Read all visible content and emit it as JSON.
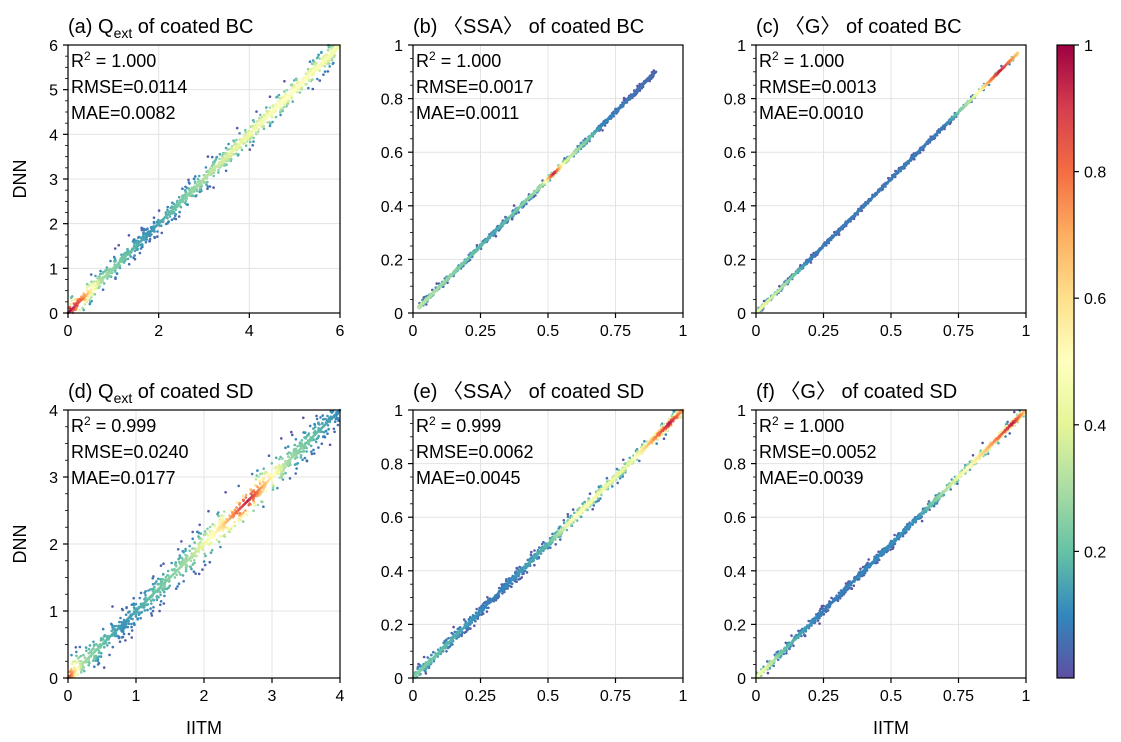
{
  "chart_data": [
    {
      "type": "scatter",
      "panel_label": "(a)",
      "quantity": "Q",
      "quantity_sub": "ext",
      "title_rest": " of coated BC",
      "stats": {
        "r2": "= 1.000",
        "rmse": "RMSE=0.0114",
        "mae": "MAE=0.0082"
      },
      "xlabel": "",
      "ylabel": "DNN",
      "xlim": [
        0,
        6
      ],
      "ylim": [
        0,
        6
      ],
      "xticks": [
        0,
        2,
        4,
        6
      ],
      "xtick_labels": [
        "0",
        "2",
        "4",
        "6"
      ],
      "yticks": [
        0,
        1,
        2,
        3,
        4,
        5,
        6
      ],
      "ytick_labels": [
        "0",
        "1",
        "2",
        "3",
        "4",
        "5",
        "6"
      ],
      "x_range": [
        0,
        6
      ],
      "spread": 0.03,
      "density_profile": [
        [
          0,
          1.0
        ],
        [
          0.05,
          0.8
        ],
        [
          0.12,
          0.3
        ],
        [
          0.3,
          0.12
        ],
        [
          0.6,
          0.4
        ],
        [
          0.8,
          0.5
        ],
        [
          1,
          0.45
        ]
      ],
      "grid": true
    },
    {
      "type": "scatter",
      "panel_label": "(b)",
      "quantity": "〈SSA〉",
      "quantity_sub": "",
      "title_rest": " of coated BC",
      "stats": {
        "r2": "= 1.000",
        "rmse": "RMSE=0.0017",
        "mae": "MAE=0.0011"
      },
      "xlabel": "",
      "ylabel": "",
      "xlim": [
        0,
        1
      ],
      "ylim": [
        0,
        1
      ],
      "xticks": [
        0,
        0.25,
        0.5,
        0.75,
        1
      ],
      "xtick_labels": [
        "0",
        "0.25",
        "0.5",
        "0.75",
        "1"
      ],
      "yticks": [
        0,
        0.2,
        0.4,
        0.6,
        0.8,
        1
      ],
      "ytick_labels": [
        "0",
        "0.2",
        "0.4",
        "0.6",
        "0.8",
        "1"
      ],
      "x_range": [
        0.02,
        0.9
      ],
      "spread": 0.008,
      "density_profile": [
        [
          0,
          0.35
        ],
        [
          0.3,
          0.15
        ],
        [
          0.48,
          0.3
        ],
        [
          0.52,
          0.95
        ],
        [
          0.56,
          0.4
        ],
        [
          0.7,
          0.1
        ],
        [
          1,
          0.02
        ]
      ],
      "grid": true
    },
    {
      "type": "scatter",
      "panel_label": "(c)",
      "quantity": "〈G〉",
      "quantity_sub": "",
      "title_rest": " of coated BC",
      "stats": {
        "r2": "= 1.000",
        "rmse": "RMSE=0.0013",
        "mae": "MAE=0.0010"
      },
      "xlabel": "",
      "ylabel": "",
      "xlim": [
        0,
        1
      ],
      "ylim": [
        0,
        1
      ],
      "xticks": [
        0,
        0.25,
        0.5,
        0.75,
        1
      ],
      "xtick_labels": [
        "0",
        "0.25",
        "0.5",
        "0.75",
        "1"
      ],
      "yticks": [
        0,
        0.2,
        0.4,
        0.6,
        0.8,
        1
      ],
      "ytick_labels": [
        "0",
        "0.2",
        "0.4",
        "0.6",
        "0.8",
        "1"
      ],
      "x_range": [
        0.0,
        0.97
      ],
      "spread": 0.006,
      "density_profile": [
        [
          0,
          0.45
        ],
        [
          0.1,
          0.3
        ],
        [
          0.2,
          0.08
        ],
        [
          0.7,
          0.08
        ],
        [
          0.8,
          0.35
        ],
        [
          0.9,
          0.95
        ],
        [
          1,
          0.5
        ]
      ],
      "grid": true
    },
    {
      "type": "scatter",
      "panel_label": "(d)",
      "quantity": "Q",
      "quantity_sub": "ext",
      "title_rest": " of coated SD",
      "stats": {
        "r2": "= 0.999",
        "rmse": "RMSE=0.0240",
        "mae": "MAE=0.0177"
      },
      "xlabel": "IITM",
      "ylabel": "DNN",
      "xlim": [
        0,
        4
      ],
      "ylim": [
        0,
        4
      ],
      "xticks": [
        0,
        1,
        2,
        3,
        4
      ],
      "xtick_labels": [
        "0",
        "1",
        "2",
        "3",
        "4"
      ],
      "yticks": [
        0,
        1,
        2,
        3,
        4
      ],
      "ytick_labels": [
        "0",
        "1",
        "2",
        "3",
        "4"
      ],
      "x_range": [
        0,
        4
      ],
      "spread": 0.045,
      "density_profile": [
        [
          0,
          0.9
        ],
        [
          0.05,
          0.3
        ],
        [
          0.2,
          0.12
        ],
        [
          0.45,
          0.3
        ],
        [
          0.55,
          0.55
        ],
        [
          0.66,
          0.95
        ],
        [
          0.8,
          0.3
        ],
        [
          1,
          0.1
        ]
      ],
      "grid": true
    },
    {
      "type": "scatter",
      "panel_label": "(e)",
      "quantity": "〈SSA〉",
      "quantity_sub": "",
      "title_rest": " of coated SD",
      "stats": {
        "r2": "= 0.999",
        "rmse": "RMSE=0.0062",
        "mae": "MAE=0.0045"
      },
      "xlabel": "",
      "ylabel": "",
      "xlim": [
        0,
        1
      ],
      "ylim": [
        0,
        1
      ],
      "xticks": [
        0,
        0.25,
        0.5,
        0.75,
        1
      ],
      "xtick_labels": [
        "0",
        "0.25",
        "0.5",
        "0.75",
        "1"
      ],
      "yticks": [
        0,
        0.2,
        0.4,
        0.6,
        0.8,
        1
      ],
      "ytick_labels": [
        "0",
        "0.2",
        "0.4",
        "0.6",
        "0.8",
        "1"
      ],
      "x_range": [
        0,
        1
      ],
      "spread": 0.016,
      "density_profile": [
        [
          0,
          0.25
        ],
        [
          0.3,
          0.08
        ],
        [
          0.5,
          0.18
        ],
        [
          0.6,
          0.5
        ],
        [
          0.68,
          0.45
        ],
        [
          0.8,
          0.4
        ],
        [
          0.95,
          0.95
        ],
        [
          1,
          0.7
        ]
      ],
      "grid": true
    },
    {
      "type": "scatter",
      "panel_label": "(f)",
      "quantity": "〈G〉",
      "quantity_sub": "",
      "title_rest": " of coated SD",
      "stats": {
        "r2": "= 1.000",
        "rmse": "RMSE=0.0052",
        "mae": "MAE=0.0039"
      },
      "xlabel": "IITM",
      "ylabel": "",
      "xlim": [
        0,
        1
      ],
      "ylim": [
        0,
        1
      ],
      "xticks": [
        0,
        0.25,
        0.5,
        0.75,
        1
      ],
      "xtick_labels": [
        "0",
        "0.25",
        "0.5",
        "0.75",
        "1"
      ],
      "yticks": [
        0,
        0.2,
        0.4,
        0.6,
        0.8,
        1
      ],
      "ytick_labels": [
        "0",
        "0.2",
        "0.4",
        "0.6",
        "0.8",
        "1"
      ],
      "x_range": [
        0,
        1
      ],
      "spread": 0.012,
      "density_profile": [
        [
          0,
          0.5
        ],
        [
          0.1,
          0.2
        ],
        [
          0.25,
          0.08
        ],
        [
          0.6,
          0.12
        ],
        [
          0.72,
          0.35
        ],
        [
          0.85,
          0.65
        ],
        [
          0.95,
          0.95
        ],
        [
          1,
          0.6
        ]
      ],
      "grid": true
    }
  ],
  "colorbar": {
    "colormap": "Spectral_r",
    "range": [
      0,
      1
    ],
    "ticks": [
      0.2,
      0.4,
      0.6,
      0.8,
      1
    ],
    "tick_labels": [
      "0.2",
      "0.4",
      "0.6",
      "0.8",
      "1"
    ],
    "colors": [
      "#5e4fa2",
      "#3288bd",
      "#66c2a5",
      "#abdda4",
      "#e6f598",
      "#ffffbf",
      "#fee08b",
      "#fdae61",
      "#f46d43",
      "#d53e4f",
      "#9e0142"
    ]
  }
}
